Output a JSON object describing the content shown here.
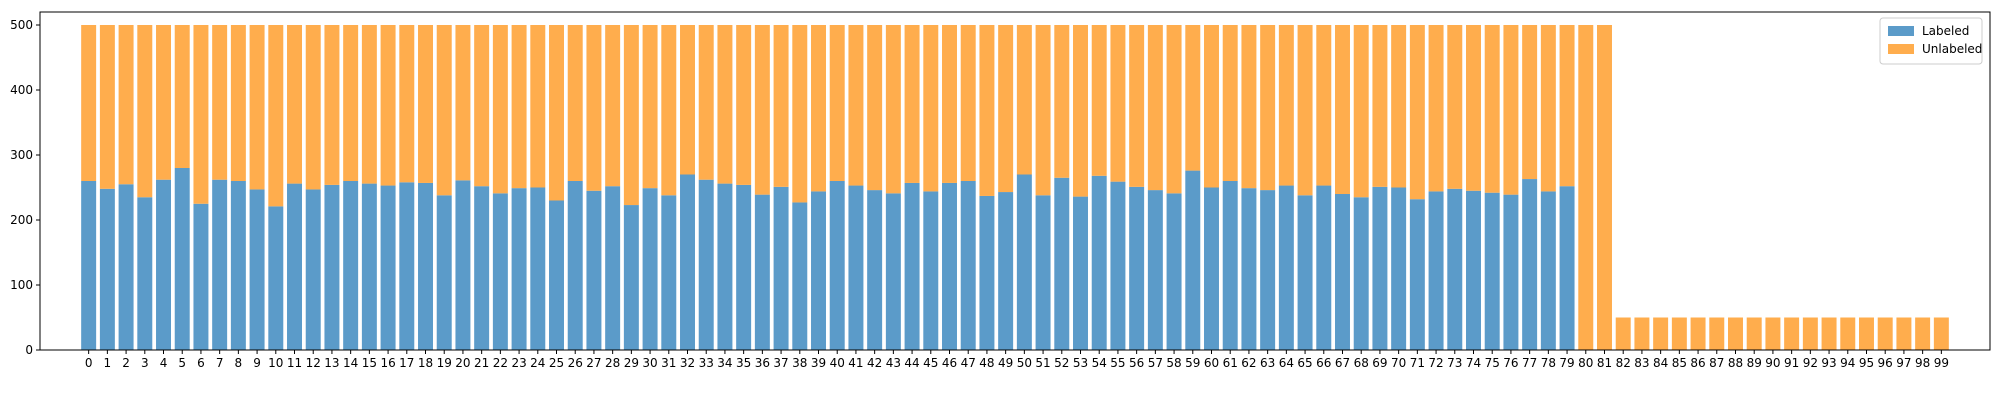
{
  "chart_data": {
    "type": "bar",
    "stacked": true,
    "categories": [
      "0",
      "1",
      "2",
      "3",
      "4",
      "5",
      "6",
      "7",
      "8",
      "9",
      "10",
      "11",
      "12",
      "13",
      "14",
      "15",
      "16",
      "17",
      "18",
      "19",
      "20",
      "21",
      "22",
      "23",
      "24",
      "25",
      "26",
      "27",
      "28",
      "29",
      "30",
      "31",
      "32",
      "33",
      "34",
      "35",
      "36",
      "37",
      "38",
      "39",
      "40",
      "41",
      "42",
      "43",
      "44",
      "45",
      "46",
      "47",
      "48",
      "49",
      "50",
      "51",
      "52",
      "53",
      "54",
      "55",
      "56",
      "57",
      "58",
      "59",
      "60",
      "61",
      "62",
      "63",
      "64",
      "65",
      "66",
      "67",
      "68",
      "69",
      "70",
      "71",
      "72",
      "73",
      "74",
      "75",
      "76",
      "77",
      "78",
      "79",
      "80",
      "81",
      "82",
      "83",
      "84",
      "85",
      "86",
      "87",
      "88",
      "89",
      "90",
      "91",
      "92",
      "93",
      "94",
      "95",
      "96",
      "97",
      "98",
      "99"
    ],
    "series": [
      {
        "name": "Labeled",
        "color": "#5b9bc9",
        "values": [
          260,
          248,
          255,
          235,
          262,
          280,
          225,
          262,
          260,
          247,
          221,
          256,
          247,
          254,
          260,
          256,
          253,
          258,
          257,
          238,
          261,
          252,
          241,
          249,
          250,
          230,
          260,
          245,
          252,
          223,
          249,
          238,
          270,
          262,
          256,
          254,
          239,
          251,
          227,
          244,
          260,
          253,
          246,
          241,
          257,
          244,
          257,
          260,
          237,
          243,
          270,
          238,
          265,
          236,
          268,
          259,
          251,
          246,
          241,
          276,
          250,
          260,
          249,
          246,
          253,
          238,
          253,
          240,
          235,
          251,
          250,
          232,
          244,
          248,
          245,
          242,
          239,
          263,
          244,
          252,
          0,
          0,
          0,
          0,
          0,
          0,
          0,
          0,
          0,
          0,
          0,
          0,
          0,
          0,
          0,
          0,
          0,
          0,
          0,
          0
        ]
      },
      {
        "name": "Unlabeled",
        "color": "#ffad4d",
        "values": [
          240,
          252,
          245,
          265,
          238,
          220,
          275,
          238,
          240,
          253,
          279,
          244,
          253,
          246,
          240,
          244,
          247,
          242,
          243,
          262,
          239,
          248,
          259,
          251,
          250,
          270,
          240,
          255,
          248,
          277,
          251,
          262,
          230,
          238,
          244,
          246,
          261,
          249,
          273,
          256,
          240,
          247,
          254,
          259,
          243,
          256,
          243,
          240,
          263,
          257,
          230,
          262,
          235,
          264,
          232,
          241,
          249,
          254,
          259,
          224,
          250,
          240,
          251,
          254,
          247,
          262,
          247,
          260,
          265,
          249,
          250,
          268,
          256,
          252,
          255,
          258,
          261,
          237,
          256,
          248,
          500,
          500,
          50,
          50,
          50,
          50,
          50,
          50,
          50,
          50,
          50,
          50,
          50,
          50,
          50,
          50,
          50,
          50,
          50,
          50
        ]
      }
    ],
    "ylim": [
      0,
      520
    ],
    "yticks": [
      0,
      100,
      200,
      300,
      400,
      500
    ],
    "grid": false,
    "legend_position": "top-right"
  }
}
